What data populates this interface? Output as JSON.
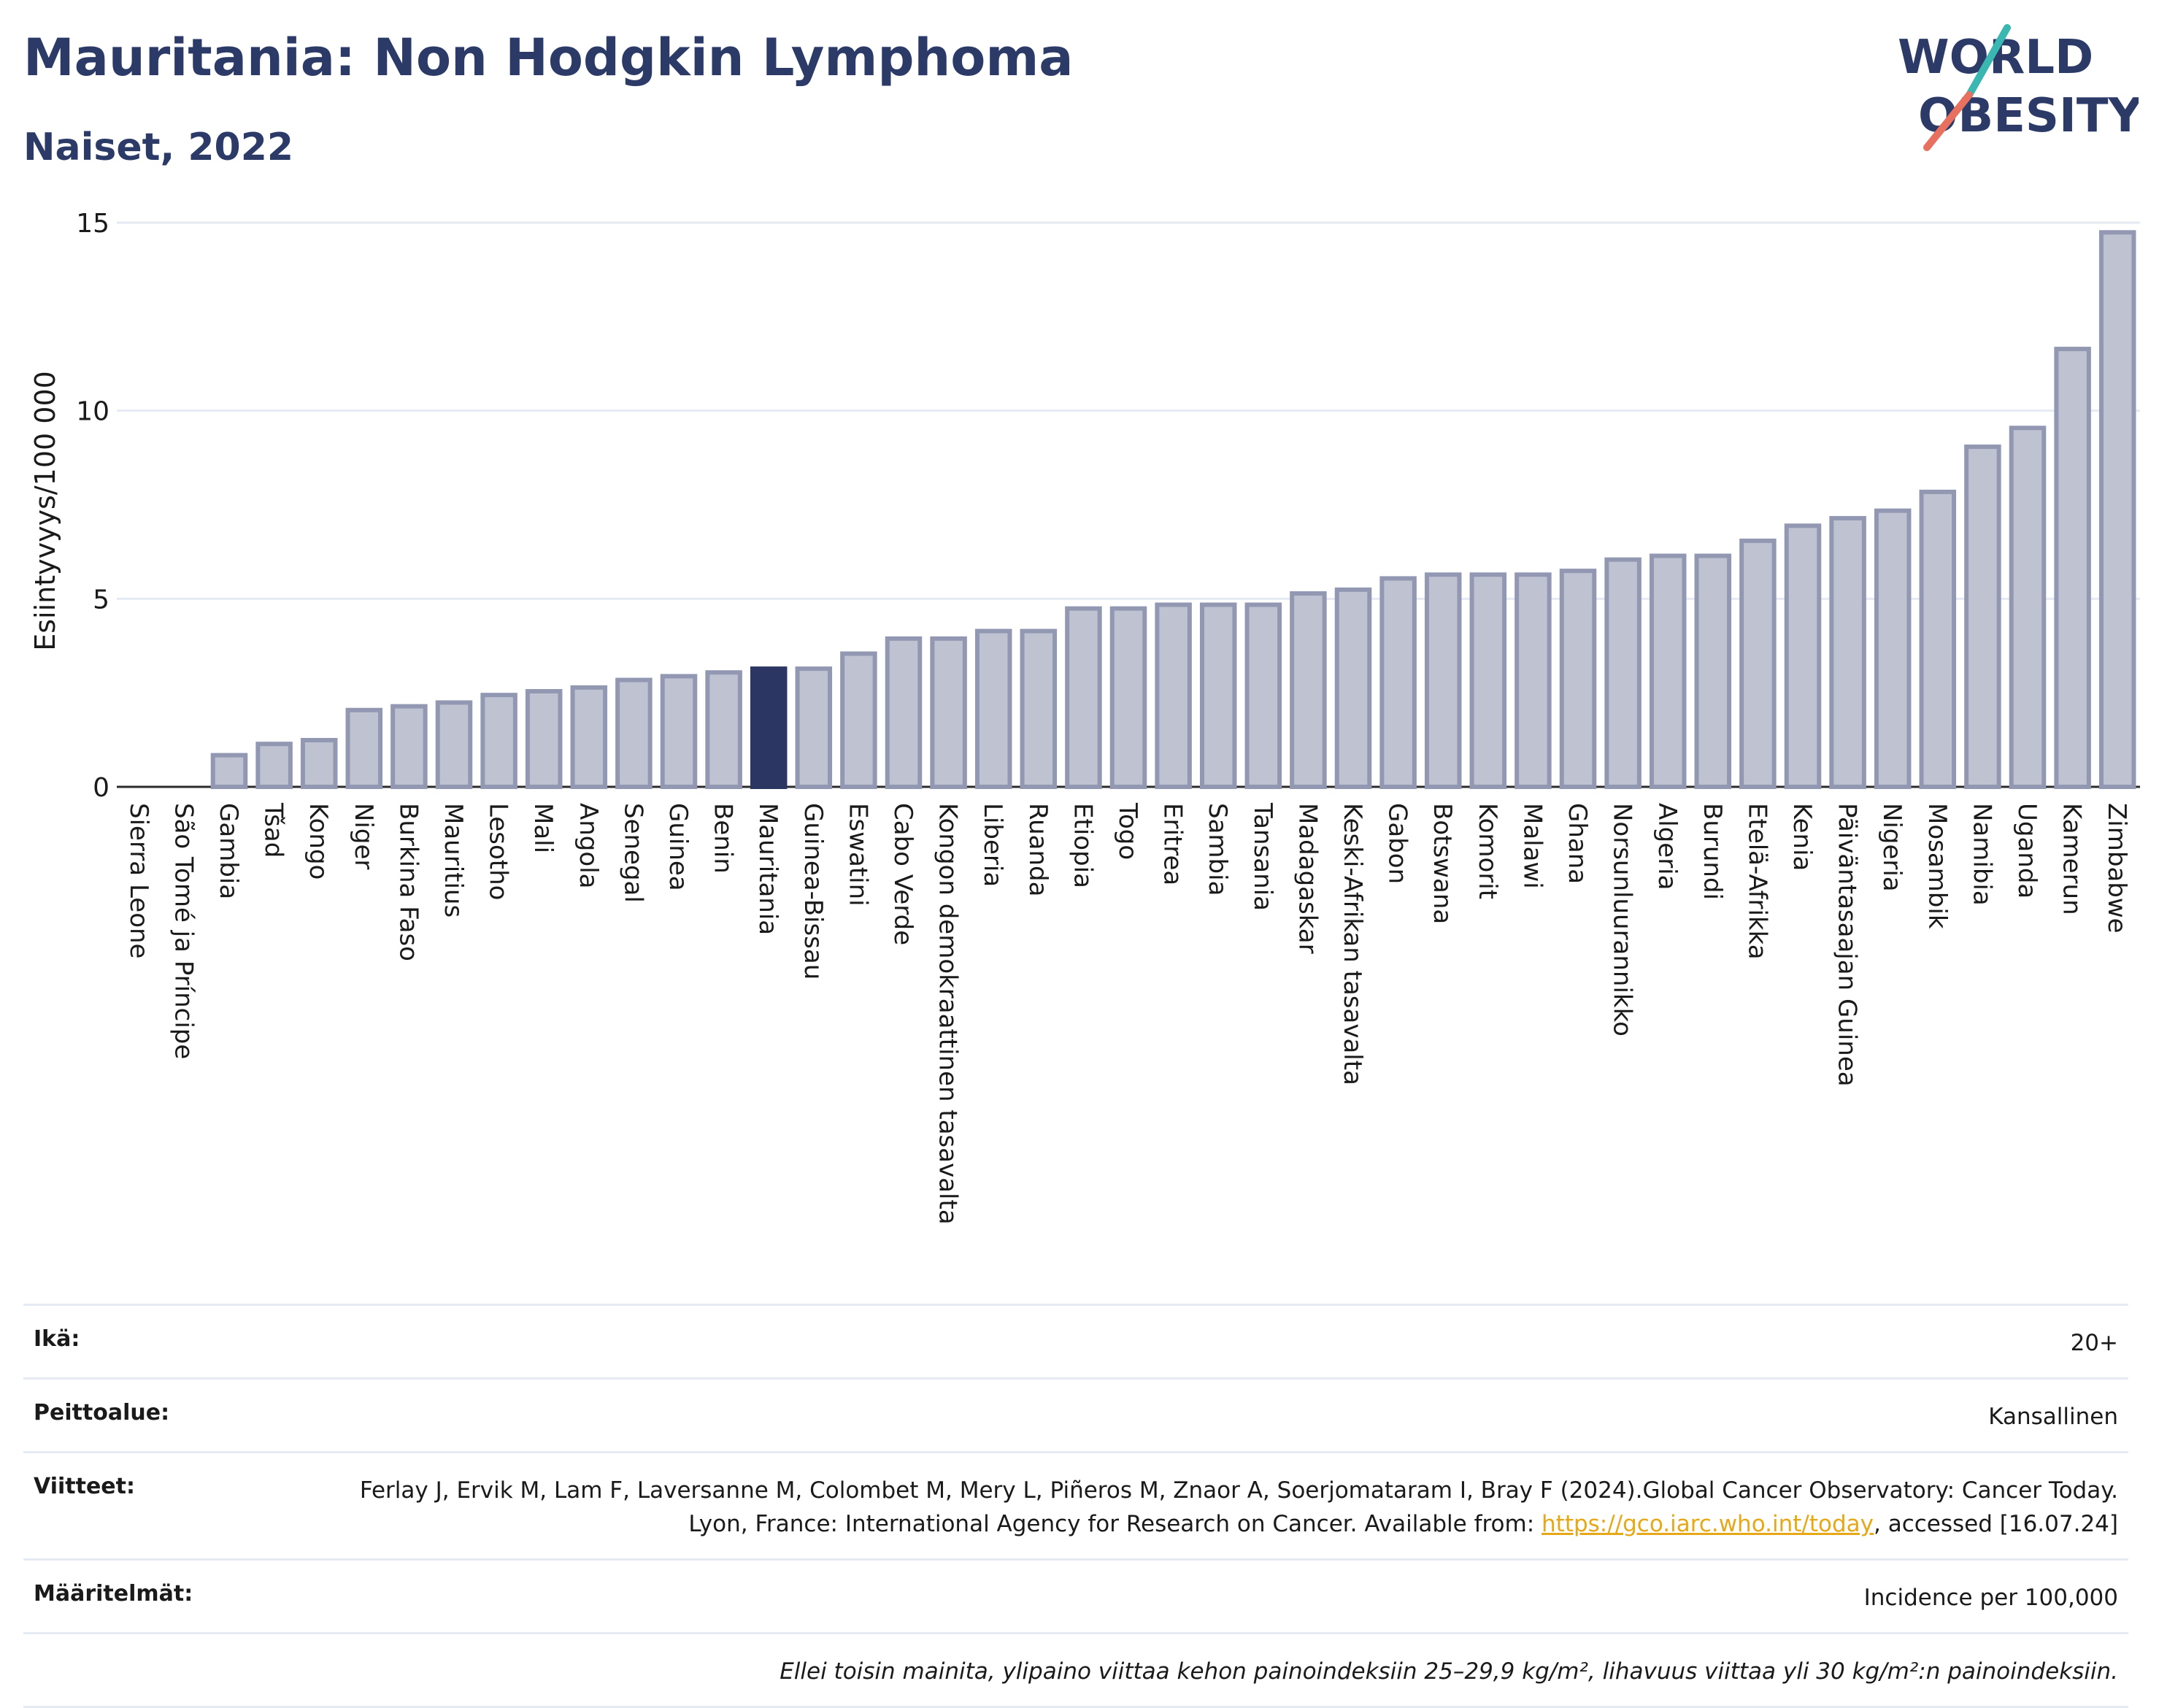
{
  "header": {
    "title": "Mauritania: Non Hodgkin Lymphoma",
    "subtitle": "Naiset, 2022",
    "logo_line1": "WORLD",
    "logo_line2": "OBESITY"
  },
  "colors": {
    "bar": "#bec2d1",
    "bar_border": "#9298b2",
    "highlight": "#2b3663",
    "title": "#2b3a67",
    "grid": "#e6eaf3"
  },
  "chart_data": {
    "type": "bar",
    "ylabel": "Esiintyvyys/100 000",
    "ylim": [
      0,
      15
    ],
    "yticks": [
      0,
      5,
      10,
      15
    ],
    "highlight": "Mauritania",
    "grid": true,
    "categories": [
      "Sierra Leone",
      "São Tomé ja Príncipe",
      "Gambia",
      "Tšad",
      "Kongo",
      "Niger",
      "Burkina Faso",
      "Mauritius",
      "Lesotho",
      "Mali",
      "Angola",
      "Senegal",
      "Guinea",
      "Benin",
      "Mauritania",
      "Guinea-Bissau",
      "Eswatini",
      "Cabo Verde",
      "Kongon demokraattinen tasavalta",
      "Liberia",
      "Ruanda",
      "Etiopia",
      "Togo",
      "Eritrea",
      "Sambia",
      "Tansania",
      "Madagaskar",
      "Keski-Afrikan tasavalta",
      "Gabon",
      "Botswana",
      "Komorit",
      "Malawi",
      "Ghana",
      "Norsunluurannikko",
      "Algeria",
      "Burundi",
      "Etelä-Afrikka",
      "Kenia",
      "Päiväntasaajan Guinea",
      "Nigeria",
      "Mosambik",
      "Namibia",
      "Uganda",
      "Kamerun",
      "Zimbabwe"
    ],
    "values": [
      0.05,
      0.05,
      0.9,
      1.2,
      1.3,
      2.1,
      2.2,
      2.3,
      2.5,
      2.6,
      2.7,
      2.9,
      3.0,
      3.1,
      3.2,
      3.2,
      3.6,
      4.0,
      4.0,
      4.2,
      4.2,
      4.8,
      4.8,
      4.9,
      4.9,
      4.9,
      5.2,
      5.3,
      5.6,
      5.7,
      5.7,
      5.7,
      5.8,
      6.1,
      6.2,
      6.2,
      6.6,
      7.0,
      7.2,
      7.4,
      7.9,
      9.1,
      9.6,
      11.7,
      14.8
    ]
  },
  "info": {
    "age_label": "Ikä:",
    "age_value": "20+",
    "coverage_label": "Peittoalue:",
    "coverage_value": "Kansallinen",
    "refs_label": "Viitteet:",
    "refs_text": "Ferlay J, Ervik M, Lam F, Laversanne M, Colombet M, Mery L, Piñeros M, Znaor A, Soerjomataram I, Bray F (2024).Global Cancer Observatory: Cancer Today. Lyon, France: International Agency for Research on Cancer. Available from: ",
    "refs_link": "https://gco.iarc.who.int/today",
    "refs_tail": ", accessed [16.07.24]",
    "defs_label": "Määritelmät:",
    "defs_value": "Incidence per 100,000",
    "note": "Ellei toisin mainita, ylipaino viittaa kehon painoindeksiin 25–29,9 kg/m², lihavuus viittaa yli 30 kg/m²:n painoindeksiin."
  }
}
